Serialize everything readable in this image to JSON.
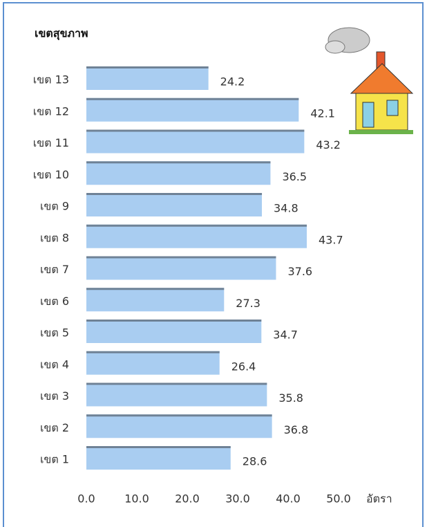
{
  "chart_data": {
    "type": "bar",
    "orientation": "horizontal",
    "title": "เขตสุขภาพ",
    "x_label": "อัตรา",
    "categories": [
      "เขต 13",
      "เขต 12",
      "เขต 11",
      "เขต 10",
      "เขต 9",
      "เขต 8",
      "เขต 7",
      "เขต 6",
      "เขต 5",
      "เขต 4",
      "เขต 3",
      "เขต 2",
      "เขต 1"
    ],
    "values": [
      24.2,
      42.1,
      43.2,
      36.5,
      34.8,
      43.7,
      37.6,
      27.3,
      34.7,
      26.4,
      35.8,
      36.8,
      28.6
    ],
    "color": "#a9cdf1",
    "xlim": [
      0,
      50
    ],
    "xticks": [
      {
        "value": 0,
        "label": "0.0"
      },
      {
        "value": 10,
        "label": "10.0"
      },
      {
        "value": 20,
        "label": "20.0"
      },
      {
        "value": 30,
        "label": "30.0"
      },
      {
        "value": 40,
        "label": "40.0"
      },
      {
        "value": 50,
        "label": "50.0"
      }
    ],
    "grid": false
  }
}
